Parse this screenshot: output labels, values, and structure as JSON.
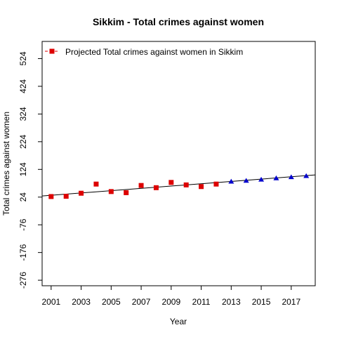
{
  "chart_data": {
    "type": "scatter",
    "title": "Sikkim  -  Total crimes against women",
    "xlabel": "Year",
    "ylabel": "Total crimes against women",
    "xlim": [
      2000.4,
      2018.6
    ],
    "ylim": [
      -296,
      586
    ],
    "x_ticks": [
      2001,
      2003,
      2005,
      2007,
      2009,
      2011,
      2013,
      2015,
      2017
    ],
    "x_tick_labels": [
      "2001",
      "2003",
      "2005",
      "2007",
      "2009",
      "2011",
      "2013",
      "2015",
      "2017"
    ],
    "y_ticks": [
      -276,
      -176,
      -76,
      24,
      124,
      224,
      324,
      424,
      524
    ],
    "y_tick_labels": [
      "-276",
      "-176",
      "-76",
      "24",
      "124",
      "224",
      "324",
      "424",
      "524"
    ],
    "grid": false,
    "legend": {
      "position": "top-left",
      "entries": [
        {
          "label": "Projected  Total crimes against women  in  Sikkim",
          "color": "#dd0000",
          "marker": "square",
          "line": "dashed"
        }
      ]
    },
    "series": [
      {
        "marker": "square",
        "color": "#dd0000",
        "x": [
          2001,
          2002,
          2003,
          2004,
          2005,
          2006,
          2007,
          2008,
          2009,
          2010,
          2011,
          2012
        ],
        "y": [
          26,
          27,
          38,
          71,
          44,
          40,
          66,
          58,
          77,
          68,
          62,
          71
        ]
      },
      {
        "marker": "triangle",
        "color": "#0000cc",
        "x": [
          2013,
          2014,
          2015,
          2016,
          2017,
          2018
        ],
        "y": [
          80,
          83,
          87,
          92,
          96,
          100
        ]
      }
    ],
    "trend_line": {
      "x": [
        2000.4,
        2018.6
      ],
      "y": [
        28,
        104
      ],
      "color": "#000000"
    }
  }
}
